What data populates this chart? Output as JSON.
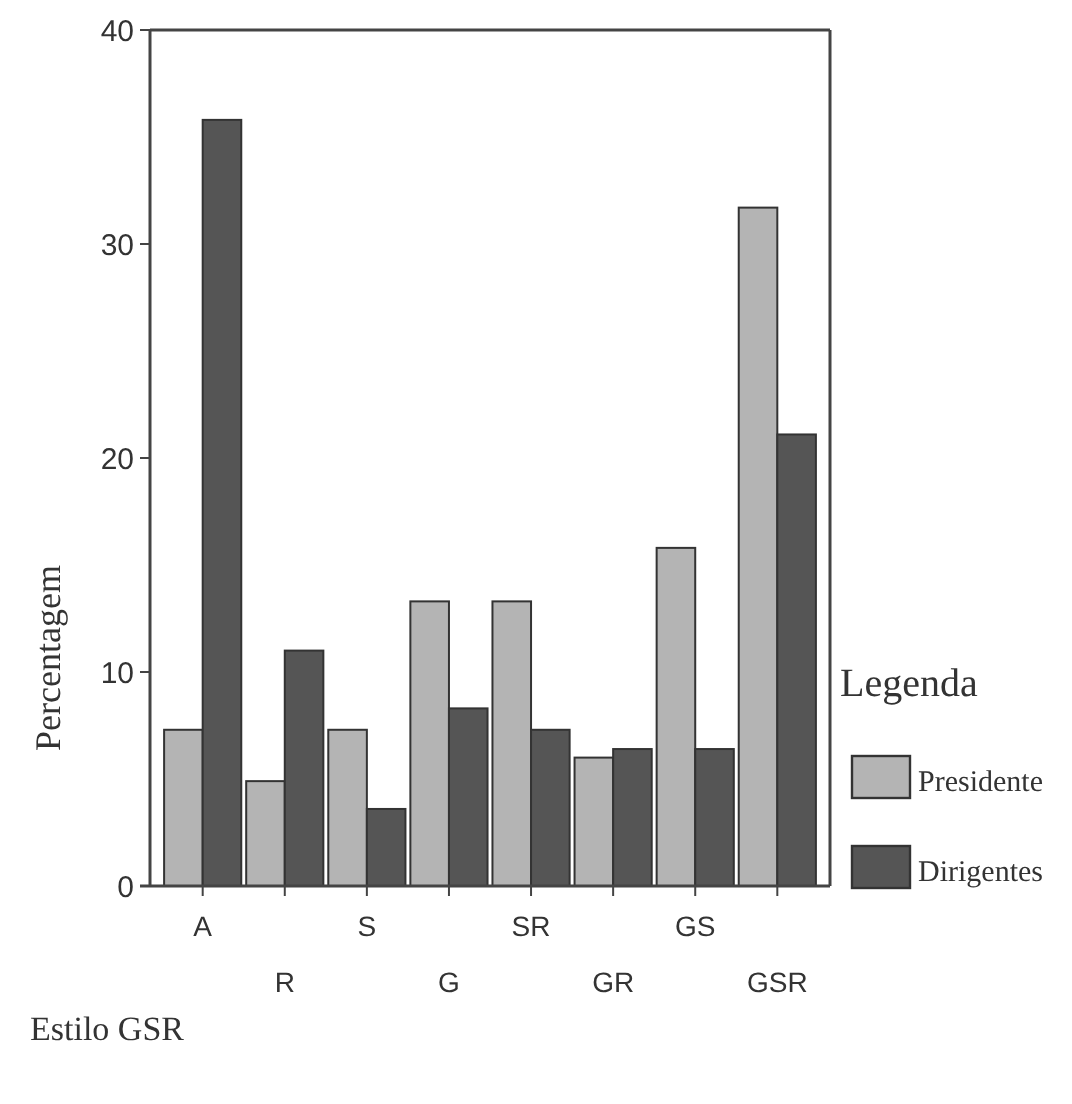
{
  "chart_data": {
    "type": "bar",
    "xlabel": "Estilo GSR",
    "ylabel": "Percentagem",
    "legend_title": "Legenda",
    "legend": "bottom right",
    "categories": [
      "A",
      "R",
      "S",
      "G",
      "SR",
      "GR",
      "GS",
      "GSR"
    ],
    "series": [
      {
        "name": "Presidente",
        "color": "#b4b4b4",
        "values": [
          7.3,
          4.9,
          7.3,
          13.3,
          13.3,
          6.0,
          15.8,
          31.7
        ]
      },
      {
        "name": "Dirigentes",
        "color": "#555555",
        "values": [
          35.8,
          11.0,
          3.6,
          8.3,
          7.3,
          6.4,
          6.4,
          21.1
        ]
      }
    ],
    "ylim": [
      0,
      40
    ],
    "yticks": [
      0,
      10,
      20,
      30,
      40
    ],
    "grid": false
  }
}
